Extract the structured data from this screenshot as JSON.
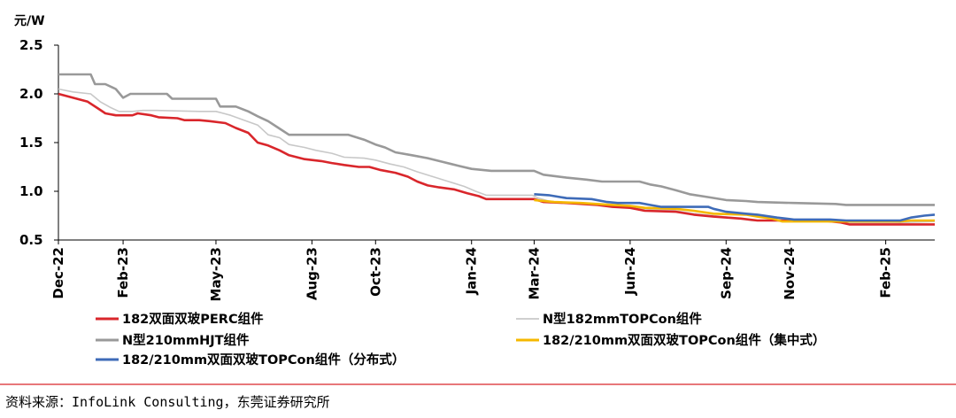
{
  "chart_data": {
    "type": "line",
    "y_unit": "元/W",
    "ylim": [
      0.5,
      2.5
    ],
    "y_ticks": [
      "2.5",
      "2.0",
      "1.5",
      "1.0",
      "0.5"
    ],
    "x_ticks": [
      "Dec-22",
      "Feb-23",
      "May-23",
      "Aug-23",
      "Oct-23",
      "Jan-24",
      "Mar-24",
      "Jun-24",
      "Sep-24",
      "Nov-24",
      "Feb-25"
    ],
    "x_tick_dates": [
      "2022-12-01",
      "2023-02-01",
      "2023-05-01",
      "2023-08-01",
      "2023-10-01",
      "2024-01-01",
      "2024-03-01",
      "2024-06-01",
      "2024-09-01",
      "2024-11-01",
      "2025-02-01"
    ],
    "x_end": "2025-03-20",
    "grid": false,
    "series": [
      {
        "name": "182双面双玻PERC组件",
        "color": "#d9262b",
        "points": [
          [
            "2022-12-01",
            2.0
          ],
          [
            "2022-12-15",
            1.96
          ],
          [
            "2022-12-29",
            1.92
          ],
          [
            "2023-01-08",
            1.85
          ],
          [
            "2023-01-15",
            1.8
          ],
          [
            "2023-01-25",
            1.78
          ],
          [
            "2023-02-10",
            1.78
          ],
          [
            "2023-02-15",
            1.8
          ],
          [
            "2023-02-28",
            1.78
          ],
          [
            "2023-03-07",
            1.76
          ],
          [
            "2023-03-25",
            1.75
          ],
          [
            "2023-04-01",
            1.73
          ],
          [
            "2023-04-15",
            1.73
          ],
          [
            "2023-04-25",
            1.72
          ],
          [
            "2023-05-10",
            1.7
          ],
          [
            "2023-05-20",
            1.65
          ],
          [
            "2023-06-01",
            1.6
          ],
          [
            "2023-06-10",
            1.5
          ],
          [
            "2023-06-20",
            1.47
          ],
          [
            "2023-07-01",
            1.42
          ],
          [
            "2023-07-10",
            1.37
          ],
          [
            "2023-07-25",
            1.33
          ],
          [
            "2023-08-10",
            1.31
          ],
          [
            "2023-08-20",
            1.29
          ],
          [
            "2023-09-01",
            1.27
          ],
          [
            "2023-09-15",
            1.25
          ],
          [
            "2023-09-25",
            1.25
          ],
          [
            "2023-10-05",
            1.22
          ],
          [
            "2023-10-20",
            1.19
          ],
          [
            "2023-11-01",
            1.15
          ],
          [
            "2023-11-10",
            1.1
          ],
          [
            "2023-11-20",
            1.06
          ],
          [
            "2023-12-01",
            1.04
          ],
          [
            "2023-12-15",
            1.02
          ],
          [
            "2023-12-28",
            0.98
          ],
          [
            "2024-01-08",
            0.95
          ],
          [
            "2024-01-15",
            0.92
          ],
          [
            "2024-03-01",
            0.92
          ],
          [
            "2024-03-10",
            0.89
          ],
          [
            "2024-04-01",
            0.88
          ],
          [
            "2024-05-01",
            0.86
          ],
          [
            "2024-05-15",
            0.84
          ],
          [
            "2024-06-01",
            0.83
          ],
          [
            "2024-06-15",
            0.8
          ],
          [
            "2024-07-15",
            0.79
          ],
          [
            "2024-08-01",
            0.76
          ],
          [
            "2024-08-20",
            0.74
          ],
          [
            "2024-09-15",
            0.72
          ],
          [
            "2024-10-01",
            0.7
          ],
          [
            "2024-11-01",
            0.7
          ],
          [
            "2024-12-01",
            0.7
          ],
          [
            "2024-12-20",
            0.68
          ],
          [
            "2024-12-28",
            0.66
          ],
          [
            "2025-03-20",
            0.66
          ]
        ]
      },
      {
        "name": "N型182mmTOPCon组件",
        "color": "#c8c8c8",
        "points": [
          [
            "2022-12-01",
            2.05
          ],
          [
            "2022-12-15",
            2.02
          ],
          [
            "2023-01-01",
            2.0
          ],
          [
            "2023-01-10",
            1.92
          ],
          [
            "2023-01-20",
            1.86
          ],
          [
            "2023-01-28",
            1.82
          ],
          [
            "2023-02-10",
            1.82
          ],
          [
            "2023-02-20",
            1.83
          ],
          [
            "2023-03-05",
            1.83
          ],
          [
            "2023-04-15",
            1.82
          ],
          [
            "2023-05-01",
            1.82
          ],
          [
            "2023-05-15",
            1.78
          ],
          [
            "2023-05-28",
            1.73
          ],
          [
            "2023-06-10",
            1.68
          ],
          [
            "2023-06-20",
            1.58
          ],
          [
            "2023-07-01",
            1.55
          ],
          [
            "2023-07-10",
            1.48
          ],
          [
            "2023-07-25",
            1.45
          ],
          [
            "2023-08-05",
            1.42
          ],
          [
            "2023-08-20",
            1.39
          ],
          [
            "2023-09-01",
            1.35
          ],
          [
            "2023-09-20",
            1.34
          ],
          [
            "2023-10-01",
            1.32
          ],
          [
            "2023-10-15",
            1.28
          ],
          [
            "2023-10-28",
            1.25
          ],
          [
            "2023-11-10",
            1.2
          ],
          [
            "2023-11-25",
            1.15
          ],
          [
            "2023-12-10",
            1.1
          ],
          [
            "2023-12-25",
            1.05
          ],
          [
            "2024-01-05",
            1.0
          ],
          [
            "2024-01-15",
            0.96
          ],
          [
            "2024-02-28",
            0.96
          ],
          [
            "2024-03-05",
            0.93
          ],
          [
            "2024-03-15",
            0.9
          ],
          [
            "2024-04-01",
            0.88
          ],
          [
            "2024-04-20",
            0.87
          ],
          [
            "2024-05-10",
            0.86
          ],
          [
            "2024-06-01",
            0.84
          ],
          [
            "2024-06-15",
            0.82
          ],
          [
            "2024-07-15",
            0.8
          ],
          [
            "2024-08-01",
            0.77
          ],
          [
            "2024-08-20",
            0.75
          ],
          [
            "2024-09-15",
            0.72
          ],
          [
            "2024-09-25",
            0.7
          ],
          [
            "2024-12-20",
            0.7
          ],
          [
            "2024-12-28",
            0.67
          ],
          [
            "2025-02-10",
            0.67
          ],
          [
            "2025-02-20",
            0.68
          ],
          [
            "2025-03-20",
            0.69
          ]
        ]
      },
      {
        "name": "N型210mmHJT组件",
        "color": "#999999",
        "points": [
          [
            "2022-12-01",
            2.2
          ],
          [
            "2023-01-01",
            2.2
          ],
          [
            "2023-01-05",
            2.1
          ],
          [
            "2023-01-15",
            2.1
          ],
          [
            "2023-01-25",
            2.05
          ],
          [
            "2023-02-01",
            1.96
          ],
          [
            "2023-02-08",
            2.0
          ],
          [
            "2023-03-15",
            2.0
          ],
          [
            "2023-03-20",
            1.95
          ],
          [
            "2023-05-01",
            1.95
          ],
          [
            "2023-05-05",
            1.87
          ],
          [
            "2023-05-20",
            1.87
          ],
          [
            "2023-06-01",
            1.82
          ],
          [
            "2023-06-10",
            1.77
          ],
          [
            "2023-06-20",
            1.72
          ],
          [
            "2023-06-30",
            1.65
          ],
          [
            "2023-07-10",
            1.58
          ],
          [
            "2023-09-05",
            1.58
          ],
          [
            "2023-09-20",
            1.53
          ],
          [
            "2023-10-01",
            1.48
          ],
          [
            "2023-10-10",
            1.45
          ],
          [
            "2023-10-20",
            1.4
          ],
          [
            "2023-11-05",
            1.37
          ],
          [
            "2023-11-20",
            1.34
          ],
          [
            "2023-12-05",
            1.3
          ],
          [
            "2023-12-20",
            1.26
          ],
          [
            "2024-01-01",
            1.23
          ],
          [
            "2024-01-20",
            1.21
          ],
          [
            "2024-03-01",
            1.21
          ],
          [
            "2024-03-10",
            1.17
          ],
          [
            "2024-04-01",
            1.14
          ],
          [
            "2024-04-20",
            1.12
          ],
          [
            "2024-05-05",
            1.1
          ],
          [
            "2024-06-10",
            1.1
          ],
          [
            "2024-06-20",
            1.07
          ],
          [
            "2024-07-01",
            1.05
          ],
          [
            "2024-07-15",
            1.01
          ],
          [
            "2024-07-28",
            0.97
          ],
          [
            "2024-08-15",
            0.94
          ],
          [
            "2024-09-01",
            0.91
          ],
          [
            "2024-09-20",
            0.9
          ],
          [
            "2024-10-01",
            0.89
          ],
          [
            "2024-11-05",
            0.88
          ],
          [
            "2024-12-15",
            0.87
          ],
          [
            "2024-12-25",
            0.86
          ],
          [
            "2025-03-20",
            0.86
          ]
        ]
      },
      {
        "name": "182/210mm双面双玻TOPCon组件（集中式）",
        "color": "#f5b800",
        "points": [
          [
            "2024-03-01",
            0.91
          ],
          [
            "2024-03-20",
            0.89
          ],
          [
            "2024-04-15",
            0.88
          ],
          [
            "2024-05-15",
            0.86
          ],
          [
            "2024-06-01",
            0.85
          ],
          [
            "2024-06-15",
            0.83
          ],
          [
            "2024-07-15",
            0.82
          ],
          [
            "2024-08-01",
            0.8
          ],
          [
            "2024-08-20",
            0.77
          ],
          [
            "2024-09-20",
            0.76
          ],
          [
            "2024-10-01",
            0.74
          ],
          [
            "2024-10-15",
            0.72
          ],
          [
            "2024-10-25",
            0.69
          ],
          [
            "2025-02-15",
            0.69
          ],
          [
            "2025-02-25",
            0.7
          ],
          [
            "2025-03-20",
            0.7
          ]
        ]
      },
      {
        "name": "182/210mm双面双玻TOPCon组件（分布式）",
        "color": "#3e6bb8",
        "points": [
          [
            "2024-03-01",
            0.97
          ],
          [
            "2024-03-15",
            0.96
          ],
          [
            "2024-04-01",
            0.93
          ],
          [
            "2024-04-25",
            0.92
          ],
          [
            "2024-05-10",
            0.89
          ],
          [
            "2024-05-20",
            0.88
          ],
          [
            "2024-06-10",
            0.88
          ],
          [
            "2024-06-20",
            0.86
          ],
          [
            "2024-07-01",
            0.84
          ],
          [
            "2024-08-15",
            0.84
          ],
          [
            "2024-08-20",
            0.82
          ],
          [
            "2024-09-01",
            0.79
          ],
          [
            "2024-09-20",
            0.77
          ],
          [
            "2024-10-01",
            0.76
          ],
          [
            "2024-10-20",
            0.73
          ],
          [
            "2024-11-05",
            0.71
          ],
          [
            "2024-12-10",
            0.71
          ],
          [
            "2024-12-25",
            0.7
          ],
          [
            "2025-02-15",
            0.7
          ],
          [
            "2025-02-25",
            0.73
          ],
          [
            "2025-03-10",
            0.75
          ],
          [
            "2025-03-20",
            0.76
          ]
        ]
      }
    ]
  },
  "source_note": "资料来源：InfoLink Consulting，东莞证券研究所"
}
